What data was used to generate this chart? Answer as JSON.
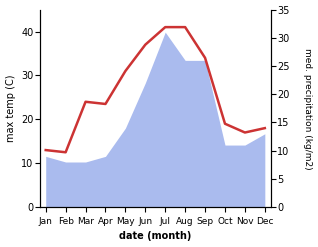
{
  "months": [
    "Jan",
    "Feb",
    "Mar",
    "Apr",
    "May",
    "Jun",
    "Jul",
    "Aug",
    "Sep",
    "Oct",
    "Nov",
    "Dec"
  ],
  "month_positions": [
    0,
    1,
    2,
    3,
    4,
    5,
    6,
    7,
    8,
    9,
    10,
    11
  ],
  "temperature": [
    13,
    12.5,
    24,
    23.5,
    31,
    37,
    41,
    41,
    34,
    19,
    17,
    18
  ],
  "precipitation": [
    9,
    8,
    8,
    9,
    14,
    22,
    31,
    26,
    26,
    11,
    11,
    13
  ],
  "temp_color": "#cc3333",
  "precip_color": "#aabbee",
  "temp_ylim": [
    0,
    45
  ],
  "precip_ylim": [
    0,
    35
  ],
  "temp_yticks": [
    0,
    10,
    20,
    30,
    40
  ],
  "precip_yticks": [
    0,
    5,
    10,
    15,
    20,
    25,
    30,
    35
  ],
  "ylabel_left": "max temp (C)",
  "ylabel_right": "med. precipitation (kg/m2)",
  "xlabel": "date (month)",
  "bg_color": "#ffffff",
  "temp_linewidth": 1.8
}
